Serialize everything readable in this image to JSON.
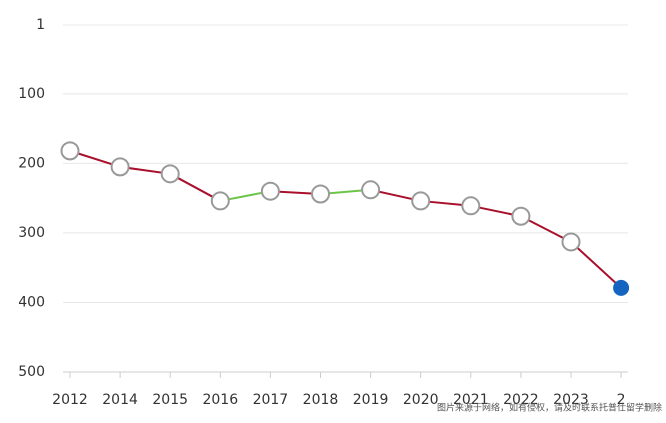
{
  "chart_data": {
    "type": "line",
    "categories": [
      "2012",
      "2014",
      "2015",
      "2016",
      "2017",
      "2018",
      "2019",
      "2020",
      "2021",
      "2022",
      "2023",
      "2"
    ],
    "values": [
      182,
      205,
      215,
      254,
      240,
      244,
      238,
      254,
      261,
      276,
      313,
      379
    ],
    "ylim": [
      1,
      500
    ],
    "yticks": [
      1,
      100,
      200,
      300,
      400,
      500
    ],
    "inverted": true,
    "grid": true,
    "worse_color": "#a8102c",
    "better_color": "#6cc54a",
    "marker_color": "#ffffff",
    "marker_stroke": "#999999",
    "last_color": "#1565c0",
    "watermark": "图片来源于网络，如有侵权，请及时联系托普仕留学删除"
  }
}
